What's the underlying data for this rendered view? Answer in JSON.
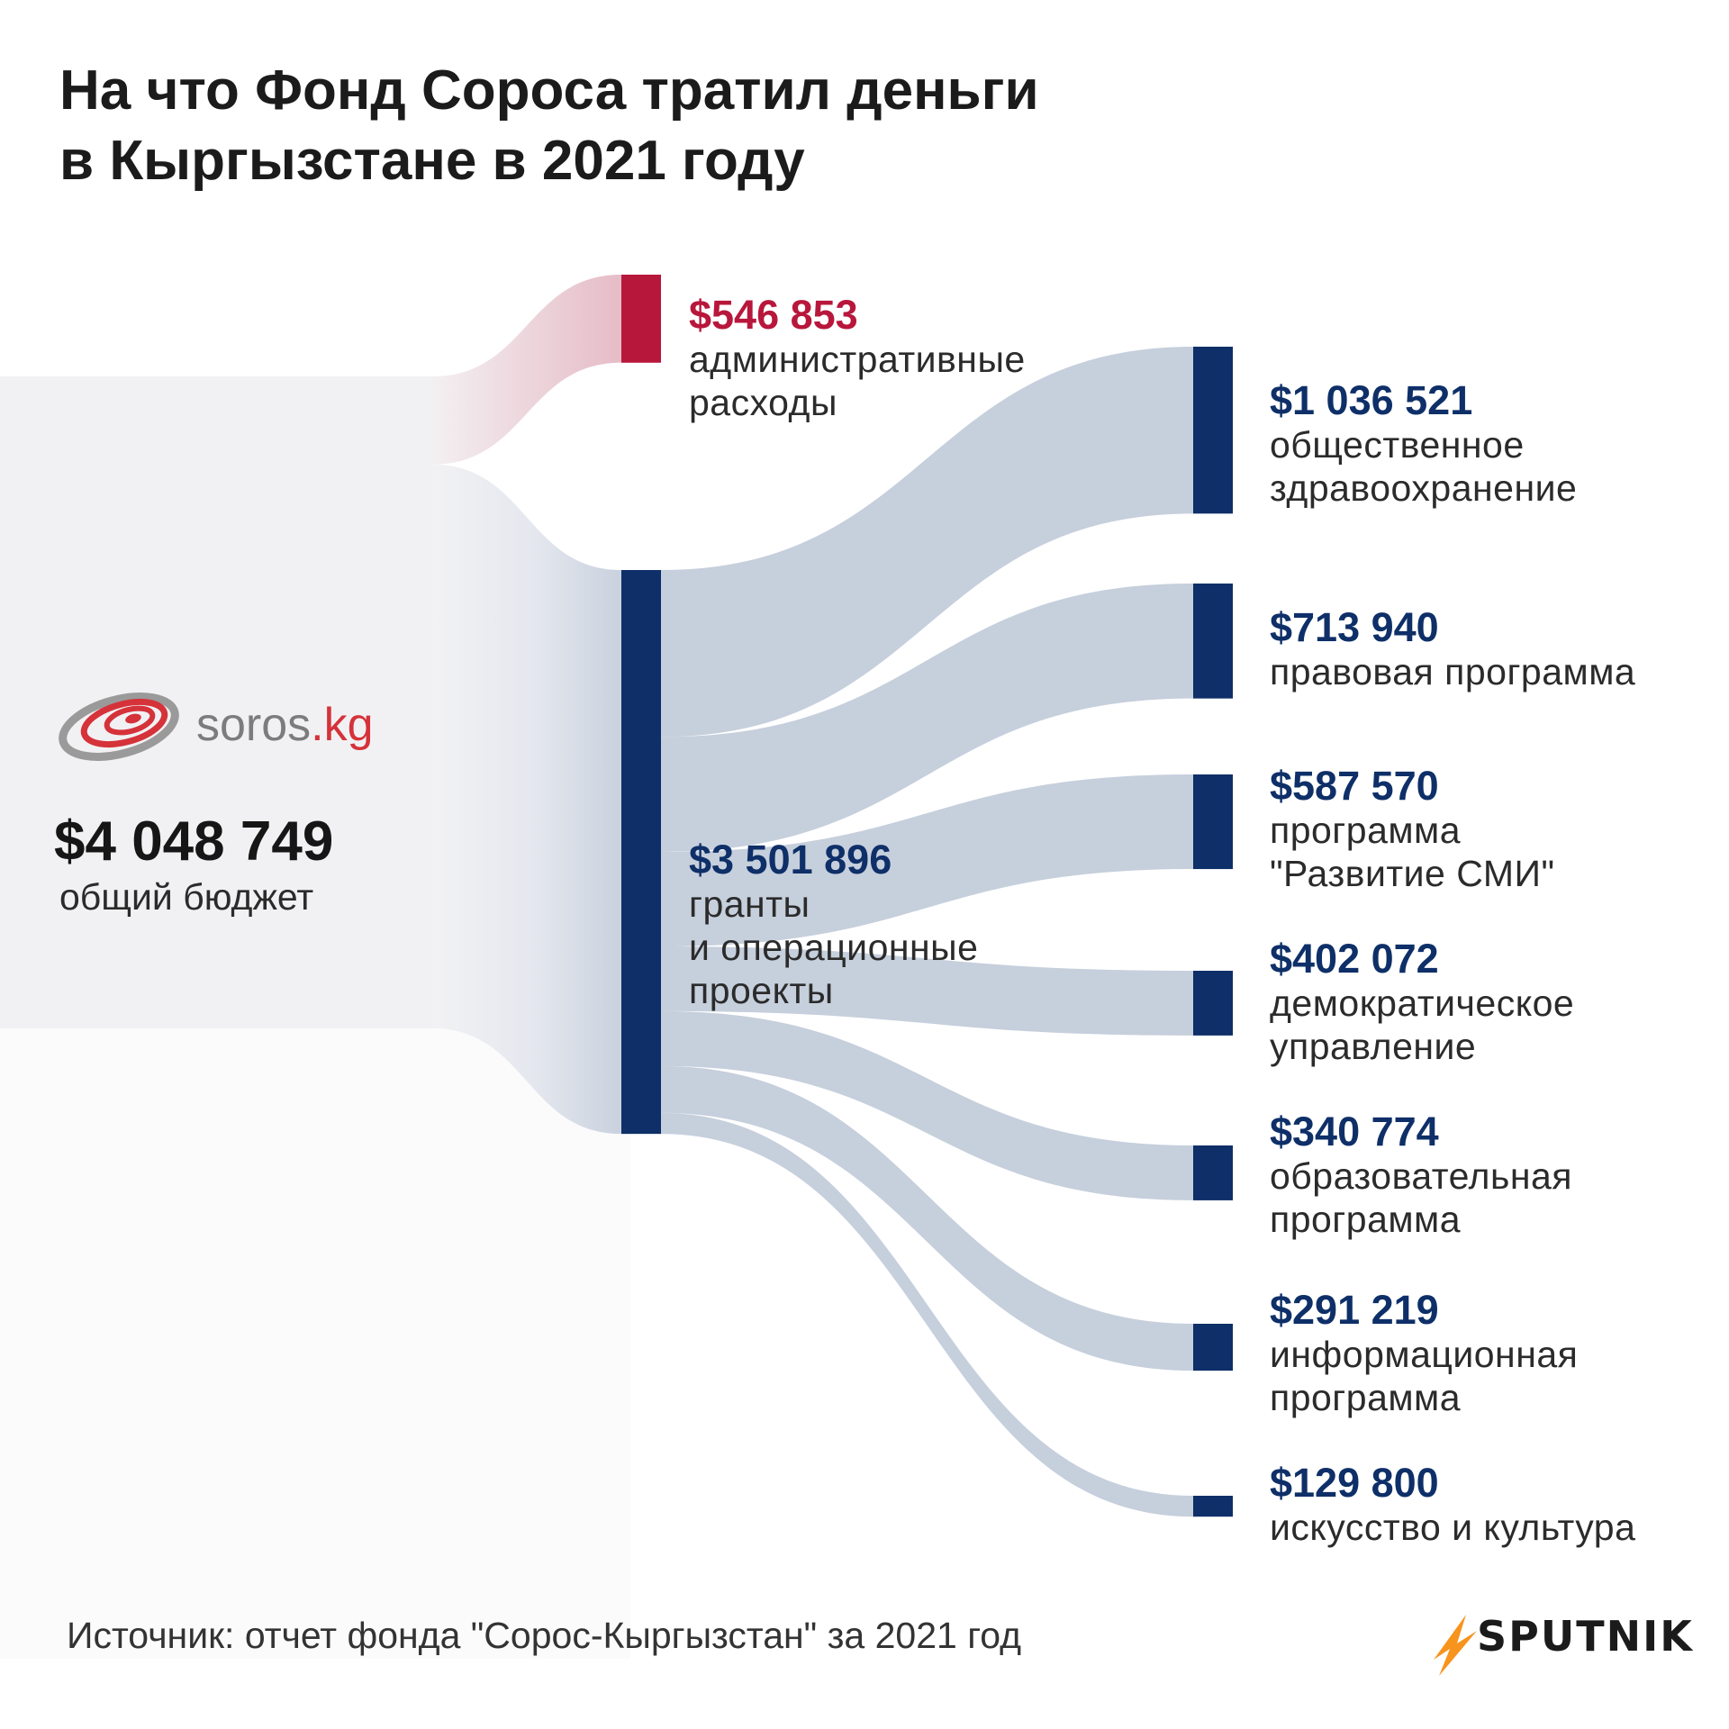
{
  "title": {
    "line1": "На что Фонд Сороса тратил деньги",
    "line2": "в Кыргызстане в 2021 году"
  },
  "logo": {
    "text_main": "soros",
    "text_tld": ".kg"
  },
  "total": {
    "amount": "$4 048 749",
    "label": "общий бюджет"
  },
  "admin": {
    "amount": "$546 853",
    "label_lines": [
      "административные",
      "расходы"
    ]
  },
  "grants": {
    "amount": "$3 501 896",
    "label_lines": [
      "гранты",
      "и операционные",
      "проекты"
    ]
  },
  "programs": [
    {
      "amount": "$1 036 521",
      "label_lines": [
        "общественное",
        "здравоохранение"
      ]
    },
    {
      "amount": "$713 940",
      "label_lines": [
        "правовая программа"
      ]
    },
    {
      "amount": "$587 570",
      "label_lines": [
        "программа",
        "\"Развитие СМИ\""
      ]
    },
    {
      "amount": "$402 072",
      "label_lines": [
        "демократическое",
        "управление"
      ]
    },
    {
      "amount": "$340 774",
      "label_lines": [
        "образовательная",
        "программа"
      ]
    },
    {
      "amount": "$291 219",
      "label_lines": [
        "информационная",
        "программа"
      ]
    },
    {
      "amount": "$129 800",
      "label_lines": [
        "искусство и культура"
      ]
    }
  ],
  "source": "Источник: отчет фонда \"Сорос-Кыргызстан\" за 2021 год",
  "brand": "SPUTNIK",
  "colors": {
    "admin": "#b8173c",
    "grants": "#0e2f68",
    "flow": "#c3ccda",
    "admin_flow": "#e8c6cf"
  },
  "chart_data": {
    "type": "sankey",
    "nodes": [
      {
        "name": "общий бюджет",
        "value": 4048749
      },
      {
        "name": "административные расходы",
        "value": 546853
      },
      {
        "name": "гранты и операционные проекты",
        "value": 3501896
      },
      {
        "name": "общественное здравоохранение",
        "value": 1036521
      },
      {
        "name": "правовая программа",
        "value": 713940
      },
      {
        "name": "программа \"Развитие СМИ\"",
        "value": 587570
      },
      {
        "name": "демократическое управление",
        "value": 402072
      },
      {
        "name": "образовательная программа",
        "value": 340774
      },
      {
        "name": "информационная программа",
        "value": 291219
      },
      {
        "name": "искусство и культура",
        "value": 129800
      }
    ],
    "links": [
      {
        "source": "общий бюджет",
        "target": "административные расходы",
        "value": 546853
      },
      {
        "source": "общий бюджет",
        "target": "гранты и операционные проекты",
        "value": 3501896
      },
      {
        "source": "гранты и операционные проекты",
        "target": "общественное здравоохранение",
        "value": 1036521
      },
      {
        "source": "гранты и операционные проекты",
        "target": "правовая программа",
        "value": 713940
      },
      {
        "source": "гранты и операционные проекты",
        "target": "программа \"Развитие СМИ\"",
        "value": 587570
      },
      {
        "source": "гранты и операционные проекты",
        "target": "демократическое управление",
        "value": 402072
      },
      {
        "source": "гранты и операционные проекты",
        "target": "образовательная программа",
        "value": 340774
      },
      {
        "source": "гранты и операционные проекты",
        "target": "информационная программа",
        "value": 291219
      },
      {
        "source": "гранты и операционные проекты",
        "target": "искусство и культура",
        "value": 129800
      }
    ]
  }
}
